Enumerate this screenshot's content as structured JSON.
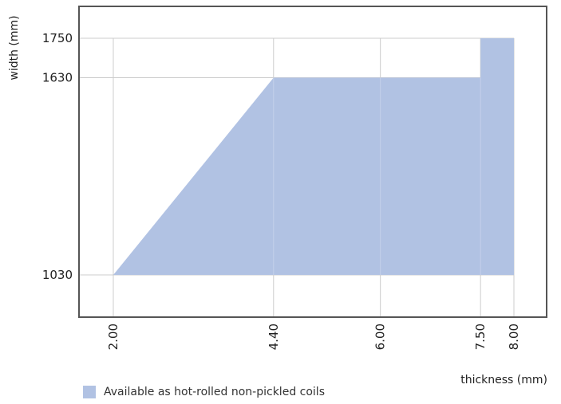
{
  "chart_data": {
    "type": "area",
    "title": "",
    "xlabel": "thickness (mm)",
    "ylabel": "width (mm)",
    "x_ticks": [
      "2.00",
      "4.40",
      "6.00",
      "7.50",
      "8.00"
    ],
    "x_tick_values": [
      2.0,
      4.4,
      6.0,
      7.5,
      8.0
    ],
    "y_ticks": [
      "1030",
      "1630",
      "1750"
    ],
    "y_tick_values": [
      1030,
      1630,
      1750
    ],
    "grid": true,
    "legend_position": "bottom-left",
    "series": [
      {
        "name": "Available as hot-rolled non-pickled coils",
        "color": "#b1c2e3",
        "outline": [
          {
            "x": 2.0,
            "y": 1030
          },
          {
            "x": 4.4,
            "y": 1630
          },
          {
            "x": 7.5,
            "y": 1630
          },
          {
            "x": 7.5,
            "y": 1750
          },
          {
            "x": 8.0,
            "y": 1750
          },
          {
            "x": 8.0,
            "y": 1030
          }
        ]
      }
    ]
  }
}
